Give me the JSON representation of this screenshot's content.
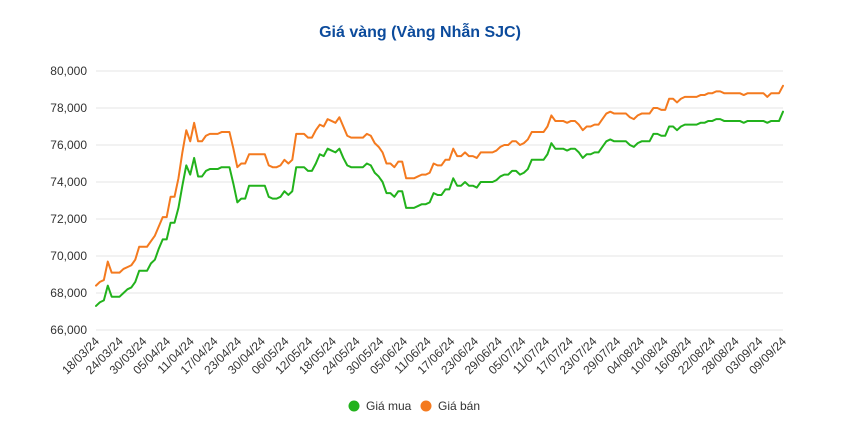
{
  "chart_data": {
    "type": "line",
    "title": "Giá vàng (Vàng Nhẫn SJC)",
    "xlabel": "",
    "ylabel": "",
    "ylim": [
      66000,
      80000
    ],
    "y_ticks": [
      66000,
      68000,
      70000,
      72000,
      74000,
      76000,
      78000,
      80000
    ],
    "y_tick_labels": [
      "66,000",
      "68,000",
      "70,000",
      "72,000",
      "74,000",
      "76,000",
      "78,000",
      "80,000"
    ],
    "x_tick_labels": [
      "18/03/24",
      "24/03/24",
      "30/03/24",
      "05/04/24",
      "11/04/24",
      "17/04/24",
      "23/04/24",
      "30/04/24",
      "06/05/24",
      "12/05/24",
      "18/05/24",
      "24/05/24",
      "30/05/24",
      "05/06/24",
      "11/06/24",
      "17/06/24",
      "23/06/24",
      "29/06/24",
      "05/07/24",
      "11/07/24",
      "17/07/24",
      "23/07/24",
      "29/07/24",
      "04/08/24",
      "10/08/24",
      "16/08/24",
      "22/08/24",
      "28/08/24",
      "03/09/24",
      "09/09/24"
    ],
    "grid": true,
    "legend_position": "bottom",
    "series": [
      {
        "name": "Giá mua",
        "color": "#22b21c",
        "values": [
          67300,
          67500,
          67600,
          68400,
          67800,
          67800,
          67800,
          68000,
          68200,
          68300,
          68600,
          69200,
          69200,
          69200,
          69600,
          69800,
          70400,
          70900,
          70900,
          71800,
          71800,
          72600,
          73800,
          74900,
          74400,
          75300,
          74300,
          74300,
          74600,
          74700,
          74700,
          74700,
          74800,
          74800,
          74800,
          73900,
          72900,
          73100,
          73100,
          73800,
          73800,
          73800,
          73800,
          73800,
          73200,
          73100,
          73100,
          73200,
          73500,
          73300,
          73500,
          74800,
          74800,
          74800,
          74600,
          74600,
          75000,
          75500,
          75400,
          75800,
          75700,
          75600,
          75800,
          75300,
          74900,
          74800,
          74800,
          74800,
          74800,
          75000,
          74900,
          74500,
          74300,
          74000,
          73400,
          73400,
          73200,
          73500,
          73500,
          72600,
          72600,
          72600,
          72700,
          72800,
          72800,
          72900,
          73400,
          73300,
          73300,
          73600,
          73600,
          74200,
          73800,
          73800,
          74000,
          73800,
          73800,
          73700,
          74000,
          74000,
          74000,
          74000,
          74100,
          74300,
          74400,
          74400,
          74600,
          74600,
          74400,
          74500,
          74700,
          75200,
          75200,
          75200,
          75200,
          75500,
          76100,
          75800,
          75800,
          75800,
          75700,
          75800,
          75800,
          75600,
          75300,
          75500,
          75500,
          75600,
          75600,
          75900,
          76200,
          76300,
          76200,
          76200,
          76200,
          76200,
          76000,
          75900,
          76100,
          76200,
          76200,
          76200,
          76600,
          76600,
          76500,
          76500,
          77000,
          77000,
          76800,
          77000,
          77100,
          77100,
          77100,
          77100,
          77200,
          77200,
          77300,
          77300,
          77400,
          77400,
          77300,
          77300,
          77300,
          77300,
          77300,
          77200,
          77300,
          77300,
          77300,
          77300,
          77300,
          77200,
          77300,
          77300,
          77300,
          77800
        ]
      },
      {
        "name": "Giá bán",
        "color": "#f47a1f",
        "values": [
          68400,
          68600,
          68700,
          69700,
          69100,
          69100,
          69100,
          69300,
          69400,
          69500,
          69800,
          70500,
          70500,
          70500,
          70800,
          71100,
          71600,
          72100,
          72100,
          73200,
          73200,
          74200,
          75600,
          76800,
          76200,
          77200,
          76200,
          76200,
          76500,
          76600,
          76600,
          76600,
          76700,
          76700,
          76700,
          75800,
          74800,
          75000,
          75000,
          75500,
          75500,
          75500,
          75500,
          75500,
          74900,
          74800,
          74800,
          74900,
          75200,
          75000,
          75200,
          76600,
          76600,
          76600,
          76400,
          76400,
          76800,
          77100,
          77000,
          77400,
          77300,
          77200,
          77500,
          77000,
          76500,
          76400,
          76400,
          76400,
          76400,
          76600,
          76500,
          76100,
          75900,
          75600,
          75000,
          75000,
          74800,
          75100,
          75100,
          74200,
          74200,
          74200,
          74300,
          74400,
          74400,
          74500,
          75000,
          74900,
          74900,
          75200,
          75200,
          75800,
          75400,
          75400,
          75600,
          75400,
          75400,
          75300,
          75600,
          75600,
          75600,
          75600,
          75700,
          75900,
          76000,
          76000,
          76200,
          76200,
          76000,
          76100,
          76300,
          76700,
          76700,
          76700,
          76700,
          77000,
          77600,
          77300,
          77300,
          77300,
          77200,
          77300,
          77300,
          77100,
          76800,
          77000,
          77000,
          77100,
          77100,
          77400,
          77700,
          77800,
          77700,
          77700,
          77700,
          77700,
          77500,
          77400,
          77600,
          77700,
          77700,
          77700,
          78000,
          78000,
          77900,
          77900,
          78500,
          78500,
          78300,
          78500,
          78600,
          78600,
          78600,
          78600,
          78700,
          78700,
          78800,
          78800,
          78900,
          78900,
          78800,
          78800,
          78800,
          78800,
          78800,
          78700,
          78800,
          78800,
          78800,
          78800,
          78800,
          78600,
          78800,
          78800,
          78800,
          79200
        ]
      }
    ]
  }
}
